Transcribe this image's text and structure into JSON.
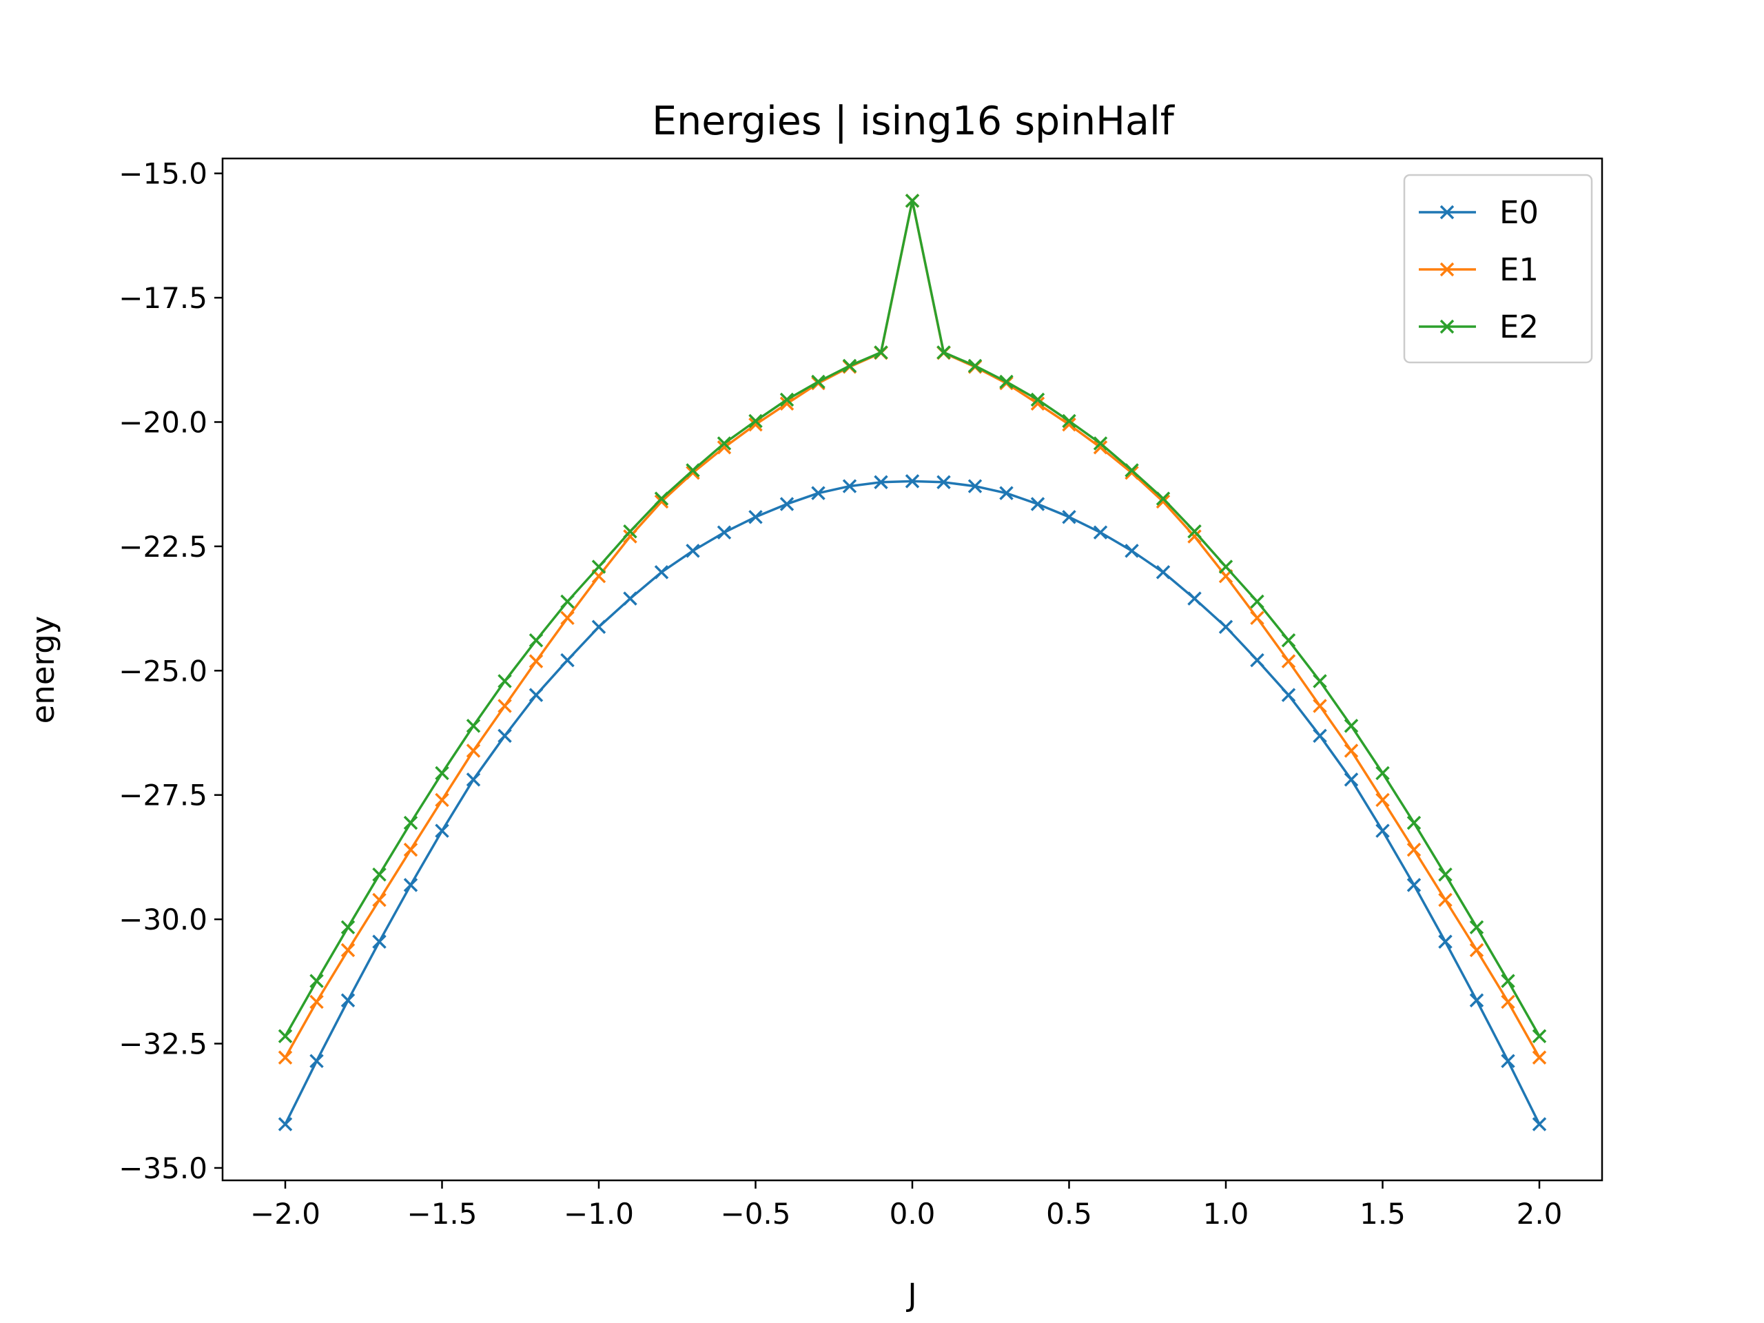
{
  "chart_data": {
    "type": "line",
    "title": "Energies | ising16 spinHalf",
    "xlabel": "J",
    "ylabel": "energy",
    "xlim": [
      -2.2,
      2.2
    ],
    "ylim": [
      -35.25,
      -14.7
    ],
    "xticks": [
      -2.0,
      -1.5,
      -1.0,
      -0.5,
      0.0,
      0.5,
      1.0,
      1.5,
      2.0
    ],
    "xtick_labels": [
      "−2.0",
      "−1.5",
      "−1.0",
      "−0.5",
      "0.0",
      "0.5",
      "1.0",
      "1.5",
      "2.0"
    ],
    "yticks": [
      -15.0,
      -17.5,
      -20.0,
      -22.5,
      -25.0,
      -27.5,
      -30.0,
      -32.5,
      -35.0
    ],
    "ytick_labels": [
      "−15.0",
      "−17.5",
      "−20.0",
      "−22.5",
      "−25.0",
      "−27.5",
      "−30.0",
      "−32.5",
      "−35.0"
    ],
    "grid": false,
    "legend_position": "top-right",
    "x": [
      -2.0,
      -1.9,
      -1.8,
      -1.7,
      -1.6,
      -1.5,
      -1.4,
      -1.3,
      -1.2,
      -1.1,
      -1.0,
      -0.9,
      -0.8,
      -0.7,
      -0.6,
      -0.5,
      -0.4,
      -0.3,
      -0.2,
      -0.1,
      0.0,
      0.1,
      0.2,
      0.3,
      0.4,
      0.5,
      0.6,
      0.7,
      0.8,
      0.9,
      1.0,
      1.1,
      1.2,
      1.3,
      1.4,
      1.5,
      1.6,
      1.7,
      1.8,
      1.9,
      2.0
    ],
    "series": [
      {
        "name": "E0",
        "color": "#1f77b4",
        "marker": "x",
        "values": [
          -34.12,
          -32.85,
          -31.63,
          -30.45,
          -29.31,
          -28.22,
          -27.19,
          -26.31,
          -25.49,
          -24.79,
          -24.12,
          -23.55,
          -23.02,
          -22.59,
          -22.22,
          -21.91,
          -21.65,
          -21.43,
          -21.29,
          -21.21,
          -21.19,
          -21.21,
          -21.29,
          -21.43,
          -21.65,
          -21.91,
          -22.22,
          -22.59,
          -23.02,
          -23.55,
          -24.12,
          -24.79,
          -25.49,
          -26.31,
          -27.19,
          -28.22,
          -29.31,
          -30.45,
          -31.63,
          -32.85,
          -34.12
        ]
      },
      {
        "name": "E1",
        "color": "#ff7f0e",
        "marker": "x",
        "values": [
          -32.78,
          -31.66,
          -30.62,
          -29.61,
          -28.6,
          -27.6,
          -26.61,
          -25.71,
          -24.81,
          -23.94,
          -23.1,
          -22.3,
          -21.6,
          -21.02,
          -20.51,
          -20.05,
          -19.63,
          -19.22,
          -18.89,
          -18.61,
          -15.55,
          -18.61,
          -18.89,
          -19.22,
          -19.63,
          -20.05,
          -20.51,
          -21.02,
          -21.6,
          -22.3,
          -23.1,
          -23.94,
          -24.81,
          -25.71,
          -26.61,
          -27.6,
          -28.6,
          -29.61,
          -30.62,
          -31.66,
          -32.78
        ]
      },
      {
        "name": "E2",
        "color": "#2ca02c",
        "marker": "x",
        "values": [
          -32.35,
          -31.24,
          -30.16,
          -29.1,
          -28.06,
          -27.06,
          -26.11,
          -25.21,
          -24.39,
          -23.61,
          -22.91,
          -22.2,
          -21.54,
          -20.97,
          -20.43,
          -19.98,
          -19.55,
          -19.19,
          -18.87,
          -18.6,
          -15.55,
          -18.6,
          -18.87,
          -19.19,
          -19.55,
          -19.98,
          -20.43,
          -20.97,
          -21.54,
          -22.2,
          -22.91,
          -23.61,
          -24.39,
          -25.21,
          -26.11,
          -27.06,
          -28.06,
          -29.1,
          -30.16,
          -31.24,
          -32.35
        ]
      }
    ]
  }
}
